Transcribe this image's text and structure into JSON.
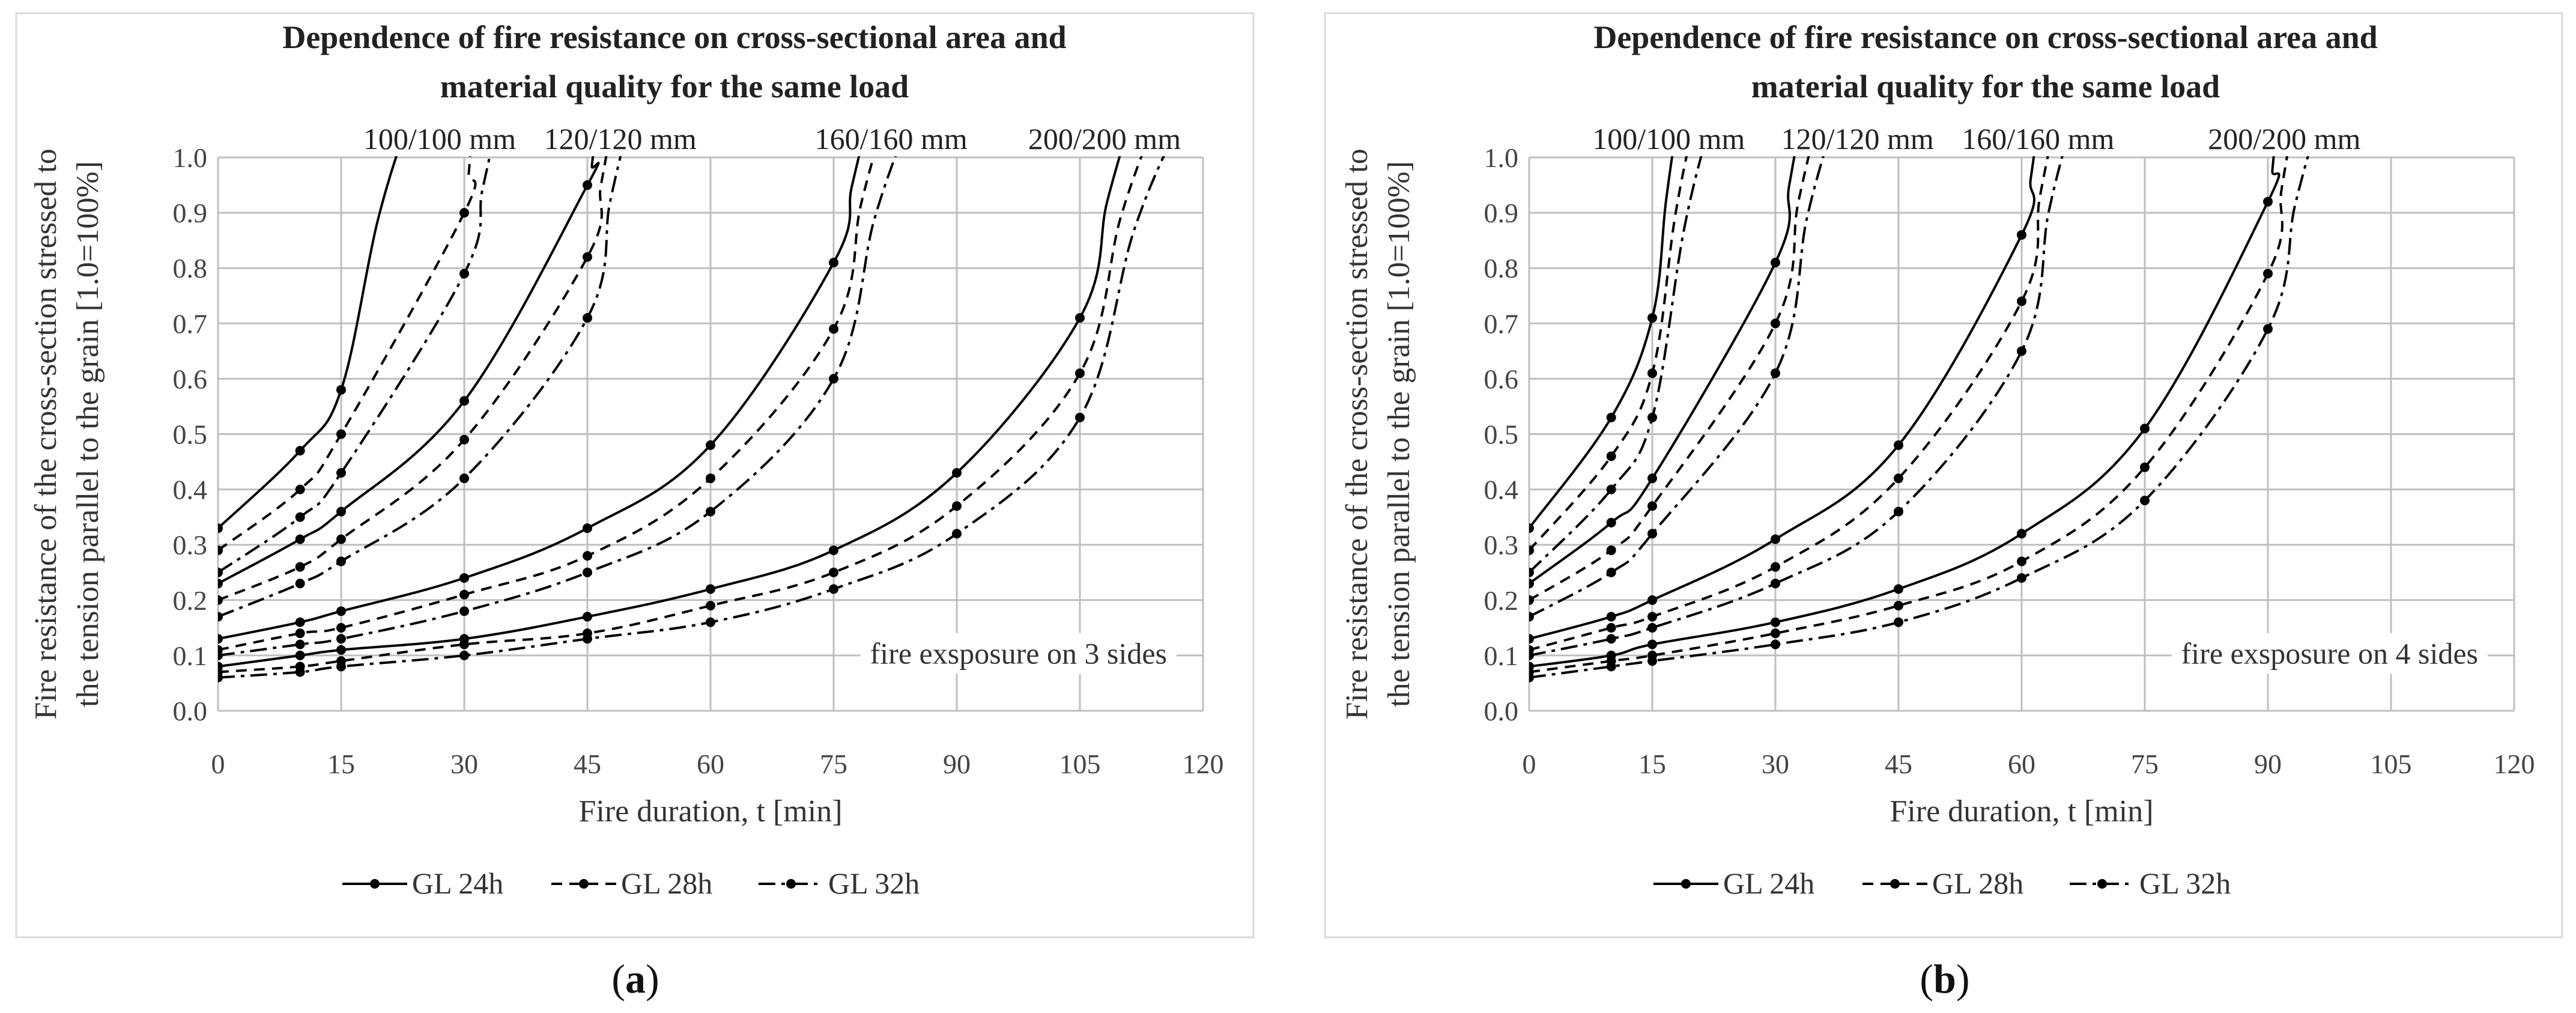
{
  "figure": {
    "panel_labels": [
      {
        "open": "(",
        "letter": "a",
        "close": ")"
      },
      {
        "open": "(",
        "letter": "b",
        "close": ")"
      }
    ]
  },
  "colors": {
    "line": "#000000",
    "grid": "#bfbfbf",
    "frame": "#d9d9d9",
    "background": "#ffffff"
  },
  "chart_data": [
    {
      "type": "line",
      "title": [
        "Dependence of fire resistance on cross-sectional area and",
        "material quality for the same load"
      ],
      "xlabel": "Fire duration, t [min]",
      "ylabel": [
        "Fire resistance of the cross-section stressed to",
        "the tension parallel to the grain [1.0=100%]"
      ],
      "xlim": [
        0,
        120
      ],
      "ylim": [
        0,
        1.0
      ],
      "xticks": [
        "0",
        "15",
        "30",
        "45",
        "60",
        "75",
        "90",
        "105",
        "120"
      ],
      "yticks": [
        "0.0",
        "0.1",
        "0.2",
        "0.3",
        "0.4",
        "0.5",
        "0.6",
        "0.7",
        "0.8",
        "0.9",
        "1.0"
      ],
      "annotation": "fire exsposure on 3 sides",
      "legend": [
        {
          "name": "GL 24h",
          "style": "solid"
        },
        {
          "name": "GL 28h",
          "style": "dashed"
        },
        {
          "name": "GL 32h",
          "style": "dashdot"
        }
      ],
      "section_labels": [
        {
          "text": "100/100 mm",
          "x": 27
        },
        {
          "text": "120/120 mm",
          "x": 49
        },
        {
          "text": "160/160 mm",
          "x": 82
        },
        {
          "text": "200/200 mm",
          "x": 108
        }
      ],
      "groups": [
        {
          "name": "100/100 mm",
          "series": [
            {
              "name": "GL 24h",
              "points": [
                [
                  0,
                  0.33
                ],
                [
                  10,
                  0.47
                ],
                [
                  15,
                  0.58
                ]
              ],
              "end_x": 23
            },
            {
              "name": "GL 28h",
              "points": [
                [
                  0,
                  0.29
                ],
                [
                  10,
                  0.4
                ],
                [
                  15,
                  0.5
                ],
                [
                  30,
                  0.9
                ]
              ],
              "end_x": 31
            },
            {
              "name": "GL 32h",
              "points": [
                [
                  0,
                  0.25
                ],
                [
                  10,
                  0.35
                ],
                [
                  15,
                  0.43
                ],
                [
                  30,
                  0.79
                ]
              ],
              "end_x": 34
            }
          ]
        },
        {
          "name": "120/120 mm",
          "series": [
            {
              "name": "GL 24h",
              "points": [
                [
                  0,
                  0.23
                ],
                [
                  10,
                  0.31
                ],
                [
                  15,
                  0.36
                ],
                [
                  30,
                  0.56
                ],
                [
                  45,
                  0.95
                ]
              ],
              "end_x": 46
            },
            {
              "name": "GL 28h",
              "points": [
                [
                  0,
                  0.2
                ],
                [
                  10,
                  0.26
                ],
                [
                  15,
                  0.31
                ],
                [
                  30,
                  0.49
                ],
                [
                  45,
                  0.82
                ]
              ],
              "end_x": 48
            },
            {
              "name": "GL 32h",
              "points": [
                [
                  0,
                  0.17
                ],
                [
                  10,
                  0.23
                ],
                [
                  15,
                  0.27
                ],
                [
                  30,
                  0.42
                ],
                [
                  45,
                  0.71
                ]
              ],
              "end_x": 50
            }
          ]
        },
        {
          "name": "160/160 mm",
          "series": [
            {
              "name": "GL 24h",
              "points": [
                [
                  0,
                  0.13
                ],
                [
                  10,
                  0.16
                ],
                [
                  15,
                  0.18
                ],
                [
                  30,
                  0.24
                ],
                [
                  45,
                  0.33
                ],
                [
                  60,
                  0.48
                ],
                [
                  75,
                  0.81
                ]
              ],
              "end_x": 79
            },
            {
              "name": "GL 28h",
              "points": [
                [
                  0,
                  0.11
                ],
                [
                  10,
                  0.14
                ],
                [
                  15,
                  0.15
                ],
                [
                  30,
                  0.21
                ],
                [
                  45,
                  0.28
                ],
                [
                  60,
                  0.42
                ],
                [
                  75,
                  0.69
                ]
              ],
              "end_x": 81
            },
            {
              "name": "GL 32h",
              "points": [
                [
                  0,
                  0.1
                ],
                [
                  10,
                  0.12
                ],
                [
                  15,
                  0.13
                ],
                [
                  30,
                  0.18
                ],
                [
                  45,
                  0.25
                ],
                [
                  60,
                  0.36
                ],
                [
                  75,
                  0.6
                ]
              ],
              "end_x": 84
            }
          ]
        },
        {
          "name": "200/200 mm",
          "series": [
            {
              "name": "GL 24h",
              "points": [
                [
                  0,
                  0.08
                ],
                [
                  10,
                  0.1
                ],
                [
                  15,
                  0.11
                ],
                [
                  30,
                  0.13
                ],
                [
                  45,
                  0.17
                ],
                [
                  60,
                  0.22
                ],
                [
                  75,
                  0.29
                ],
                [
                  90,
                  0.43
                ],
                [
                  105,
                  0.71
                ]
              ],
              "end_x": 111
            },
            {
              "name": "GL 28h",
              "points": [
                [
                  0,
                  0.07
                ],
                [
                  10,
                  0.08
                ],
                [
                  15,
                  0.09
                ],
                [
                  30,
                  0.12
                ],
                [
                  45,
                  0.14
                ],
                [
                  60,
                  0.19
                ],
                [
                  75,
                  0.25
                ],
                [
                  90,
                  0.37
                ],
                [
                  105,
                  0.61
                ]
              ],
              "end_x": 114
            },
            {
              "name": "GL 32h",
              "points": [
                [
                  0,
                  0.06
                ],
                [
                  10,
                  0.07
                ],
                [
                  15,
                  0.08
                ],
                [
                  30,
                  0.1
                ],
                [
                  45,
                  0.13
                ],
                [
                  60,
                  0.16
                ],
                [
                  75,
                  0.22
                ],
                [
                  90,
                  0.32
                ],
                [
                  105,
                  0.53
                ]
              ],
              "end_x": 117
            }
          ]
        }
      ]
    },
    {
      "type": "line",
      "title": [
        "Dependence of fire resistance on cross-sectional area and",
        "material quality for the same load"
      ],
      "xlabel": "Fire duration, t [min]",
      "ylabel": [
        "Fire resistance of the cross-section stressed to",
        "the tension parallel to the grain [1.0=100%]"
      ],
      "xlim": [
        0,
        120
      ],
      "ylim": [
        0,
        1.0
      ],
      "xticks": [
        "0",
        "15",
        "30",
        "45",
        "60",
        "75",
        "90",
        "105",
        "120"
      ],
      "yticks": [
        "0.0",
        "0.1",
        "0.2",
        "0.3",
        "0.4",
        "0.5",
        "0.6",
        "0.7",
        "0.8",
        "0.9",
        "1.0"
      ],
      "annotation": "fire exsposure on 4 sides",
      "legend": [
        {
          "name": "GL 24h",
          "style": "solid"
        },
        {
          "name": "GL 28h",
          "style": "dashed"
        },
        {
          "name": "GL 32h",
          "style": "dashdot"
        }
      ],
      "section_labels": [
        {
          "text": "100/100 mm",
          "x": 17
        },
        {
          "text": "120/120 mm",
          "x": 40
        },
        {
          "text": "160/160 mm",
          "x": 62
        },
        {
          "text": "200/200 mm",
          "x": 92
        }
      ],
      "groups": [
        {
          "name": "100/100 mm",
          "series": [
            {
              "name": "GL 24h",
              "points": [
                [
                  0,
                  0.33
                ],
                [
                  10,
                  0.53
                ],
                [
                  15,
                  0.71
                ]
              ],
              "end_x": 18
            },
            {
              "name": "GL 28h",
              "points": [
                [
                  0,
                  0.29
                ],
                [
                  10,
                  0.46
                ],
                [
                  15,
                  0.61
                ]
              ],
              "end_x": 20
            },
            {
              "name": "GL 32h",
              "points": [
                [
                  0,
                  0.25
                ],
                [
                  10,
                  0.4
                ],
                [
                  15,
                  0.53
                ]
              ],
              "end_x": 22
            }
          ]
        },
        {
          "name": "120/120 mm",
          "series": [
            {
              "name": "GL 24h",
              "points": [
                [
                  0,
                  0.23
                ],
                [
                  10,
                  0.34
                ],
                [
                  15,
                  0.42
                ],
                [
                  30,
                  0.81
                ]
              ],
              "end_x": 33
            },
            {
              "name": "GL 28h",
              "points": [
                [
                  0,
                  0.2
                ],
                [
                  10,
                  0.29
                ],
                [
                  15,
                  0.37
                ],
                [
                  30,
                  0.7
                ]
              ],
              "end_x": 35
            },
            {
              "name": "GL 32h",
              "points": [
                [
                  0,
                  0.17
                ],
                [
                  10,
                  0.25
                ],
                [
                  15,
                  0.32
                ],
                [
                  30,
                  0.61
                ]
              ],
              "end_x": 37
            }
          ]
        },
        {
          "name": "160/160 mm",
          "series": [
            {
              "name": "GL 24h",
              "points": [
                [
                  0,
                  0.13
                ],
                [
                  10,
                  0.17
                ],
                [
                  15,
                  0.2
                ],
                [
                  30,
                  0.31
                ],
                [
                  45,
                  0.48
                ],
                [
                  60,
                  0.86
                ]
              ],
              "end_x": 62
            },
            {
              "name": "GL 28h",
              "points": [
                [
                  0,
                  0.11
                ],
                [
                  10,
                  0.15
                ],
                [
                  15,
                  0.17
                ],
                [
                  30,
                  0.26
                ],
                [
                  45,
                  0.42
                ],
                [
                  60,
                  0.74
                ]
              ],
              "end_x": 64
            },
            {
              "name": "GL 32h",
              "points": [
                [
                  0,
                  0.1
                ],
                [
                  10,
                  0.13
                ],
                [
                  15,
                  0.15
                ],
                [
                  30,
                  0.23
                ],
                [
                  45,
                  0.36
                ],
                [
                  60,
                  0.65
                ]
              ],
              "end_x": 66
            }
          ]
        },
        {
          "name": "200/200 mm",
          "series": [
            {
              "name": "GL 24h",
              "points": [
                [
                  0,
                  0.08
                ],
                [
                  10,
                  0.1
                ],
                [
                  15,
                  0.12
                ],
                [
                  30,
                  0.16
                ],
                [
                  45,
                  0.22
                ],
                [
                  60,
                  0.32
                ],
                [
                  75,
                  0.51
                ],
                [
                  90,
                  0.92
                ]
              ],
              "end_x": 91
            },
            {
              "name": "GL 28h",
              "points": [
                [
                  0,
                  0.07
                ],
                [
                  10,
                  0.09
                ],
                [
                  15,
                  0.1
                ],
                [
                  30,
                  0.14
                ],
                [
                  45,
                  0.19
                ],
                [
                  60,
                  0.27
                ],
                [
                  75,
                  0.44
                ],
                [
                  90,
                  0.79
                ]
              ],
              "end_x": 93
            },
            {
              "name": "GL 32h",
              "points": [
                [
                  0,
                  0.06
                ],
                [
                  10,
                  0.08
                ],
                [
                  15,
                  0.09
                ],
                [
                  30,
                  0.12
                ],
                [
                  45,
                  0.16
                ],
                [
                  60,
                  0.24
                ],
                [
                  75,
                  0.38
                ],
                [
                  90,
                  0.69
                ]
              ],
              "end_x": 96
            }
          ]
        }
      ]
    }
  ]
}
